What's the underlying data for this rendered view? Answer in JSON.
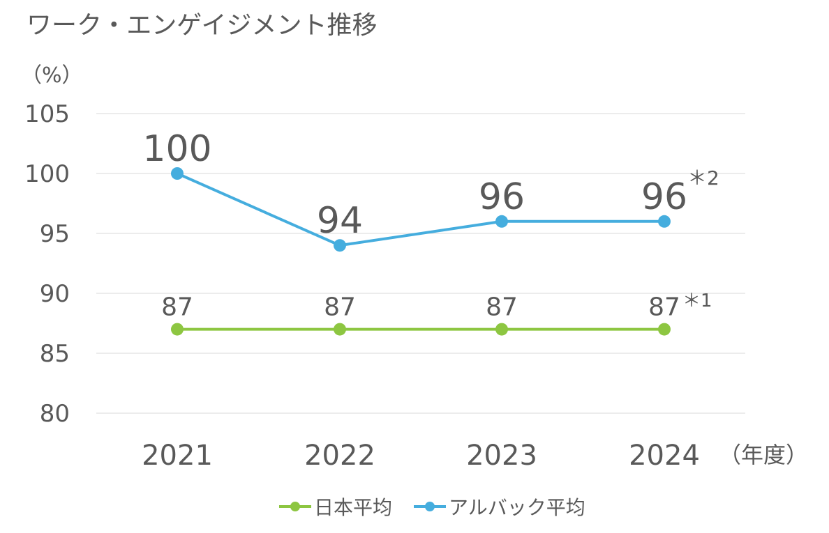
{
  "chart_data": {
    "type": "line",
    "title": "ワーク・エンゲイジメント推移",
    "ylabel": "（%）",
    "xlabel": "（年度）",
    "ylim": [
      80,
      105
    ],
    "yticks": [
      "80",
      "85",
      "90",
      "95",
      "100",
      "105"
    ],
    "categories": [
      "2021",
      "2022",
      "2023",
      "2024"
    ],
    "grid": true,
    "legend_position": "bottom",
    "series": [
      {
        "name": "日本平均",
        "color": "#8DC641",
        "values": [
          87,
          87,
          87,
          87
        ],
        "labels": [
          "87",
          "87",
          "87",
          "87"
        ],
        "note": "＊1"
      },
      {
        "name": "アルバック平均",
        "color": "#45ADDE",
        "values": [
          100,
          94,
          96,
          96
        ],
        "labels": [
          "100",
          "94",
          "96",
          "96"
        ],
        "note": "＊2"
      }
    ]
  }
}
